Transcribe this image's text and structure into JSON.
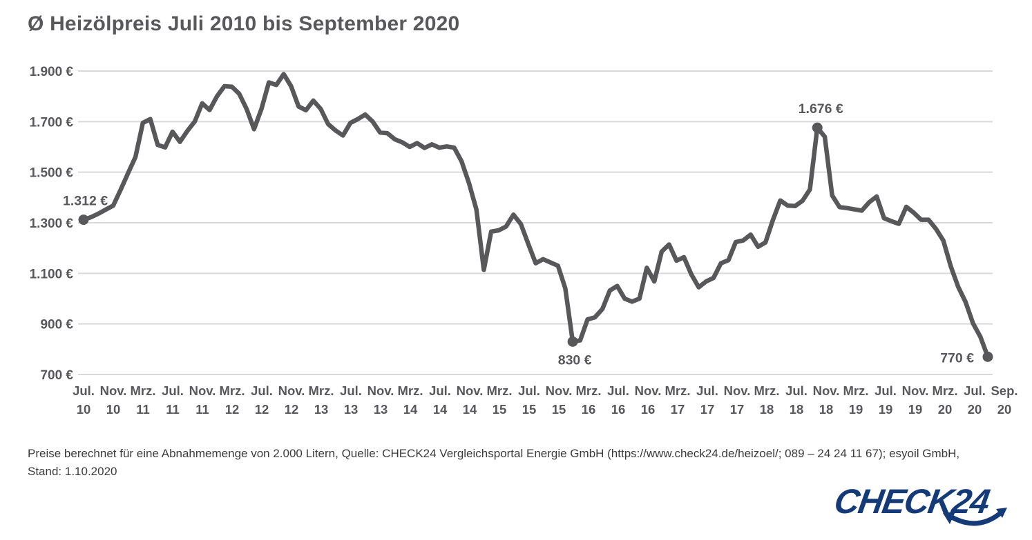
{
  "title": "Ø Heizölpreis Juli 2010 bis September 2020",
  "footer": {
    "line1": "Preise berechnet für eine Abnahmemenge von 2.000 Litern, Quelle: CHECK24 Vergleichsportal Energie GmbH (https://www.check24.de/heizoel/; 089 – 24 24 11 67); esyoil GmbH,",
    "line2": "Stand: 1.10.2020"
  },
  "logo": {
    "text": "CHECK24",
    "color": "#153A78"
  },
  "colors": {
    "line": "#58585A",
    "grid": "#D9D9D9",
    "axis_text": "#58585A",
    "annotation_text": "#58585A",
    "footer_text": "#3B3B3B",
    "background": "#FFFFFF"
  },
  "chart_data": {
    "type": "line",
    "title": "Ø Heizölpreis Juli 2010 bis September 2020",
    "unit": "€",
    "grid": true,
    "legend": false,
    "ylim": [
      700,
      1900
    ],
    "ytick_step": 200,
    "ytick_labels": [
      "1.900 €",
      "1.700 €",
      "1.500 €",
      "1.300 €",
      "1.100 €",
      "900 €",
      "700 €"
    ],
    "xtick_labels": [
      [
        "Jul.",
        "10"
      ],
      [
        "Nov.",
        "10"
      ],
      [
        "Mrz.",
        "11"
      ],
      [
        "Jul.",
        "11"
      ],
      [
        "Nov.",
        "11"
      ],
      [
        "Mrz.",
        "12"
      ],
      [
        "Jul.",
        "12"
      ],
      [
        "Nov.",
        "12"
      ],
      [
        "Mrz.",
        "13"
      ],
      [
        "Jul.",
        "13"
      ],
      [
        "Nov.",
        "13"
      ],
      [
        "Mrz.",
        "14"
      ],
      [
        "Jul.",
        "14"
      ],
      [
        "Nov.",
        "14"
      ],
      [
        "Mrz.",
        "15"
      ],
      [
        "Jul.",
        "15"
      ],
      [
        "Nov.",
        "15"
      ],
      [
        "Mrz.",
        "16"
      ],
      [
        "Jul.",
        "16"
      ],
      [
        "Nov.",
        "16"
      ],
      [
        "Mrz.",
        "17"
      ],
      [
        "Jul.",
        "17"
      ],
      [
        "Nov.",
        "17"
      ],
      [
        "Mrz.",
        "18"
      ],
      [
        "Jul.",
        "18"
      ],
      [
        "Nov.",
        "18"
      ],
      [
        "Mrz.",
        "19"
      ],
      [
        "Jul.",
        "19"
      ],
      [
        "Nov.",
        "19"
      ],
      [
        "Mrz.",
        "20"
      ],
      [
        "Jul.",
        "20"
      ],
      [
        "Sep.",
        "20"
      ]
    ],
    "x_start": "Juli 2010",
    "x_end": "September 2020",
    "x_resolution": "monthly",
    "series": [
      {
        "name": "Ø Heizölpreis (2.000 Liter)",
        "values": [
          1312,
          1322,
          1336,
          1352,
          1368,
          1430,
          1496,
          1560,
          1695,
          1710,
          1608,
          1598,
          1660,
          1620,
          1663,
          1700,
          1772,
          1746,
          1800,
          1840,
          1838,
          1810,
          1750,
          1670,
          1750,
          1855,
          1845,
          1888,
          1840,
          1760,
          1745,
          1783,
          1750,
          1690,
          1665,
          1645,
          1695,
          1710,
          1728,
          1700,
          1657,
          1654,
          1630,
          1618,
          1600,
          1615,
          1596,
          1610,
          1597,
          1602,
          1597,
          1543,
          1457,
          1352,
          1114,
          1265,
          1270,
          1285,
          1332,
          1295,
          1216,
          1140,
          1156,
          1143,
          1130,
          1040,
          830,
          835,
          918,
          926,
          959,
          1032,
          1050,
          1000,
          988,
          1000,
          1122,
          1068,
          1186,
          1214,
          1150,
          1164,
          1096,
          1045,
          1068,
          1082,
          1140,
          1152,
          1224,
          1230,
          1253,
          1205,
          1222,
          1310,
          1388,
          1368,
          1366,
          1387,
          1432,
          1676,
          1640,
          1408,
          1362,
          1358,
          1353,
          1348,
          1381,
          1404,
          1318,
          1306,
          1296,
          1363,
          1340,
          1312,
          1312,
          1276,
          1230,
          1128,
          1047,
          987,
          903,
          849,
          770
        ]
      }
    ],
    "annotations": [
      {
        "index": 0,
        "label": "1.312 €",
        "position": "above-left"
      },
      {
        "index": 66,
        "label": "830 €",
        "position": "below"
      },
      {
        "index": 99,
        "label": "1.676 €",
        "position": "above"
      },
      {
        "index": 122,
        "label": "770 €",
        "position": "left"
      }
    ]
  }
}
